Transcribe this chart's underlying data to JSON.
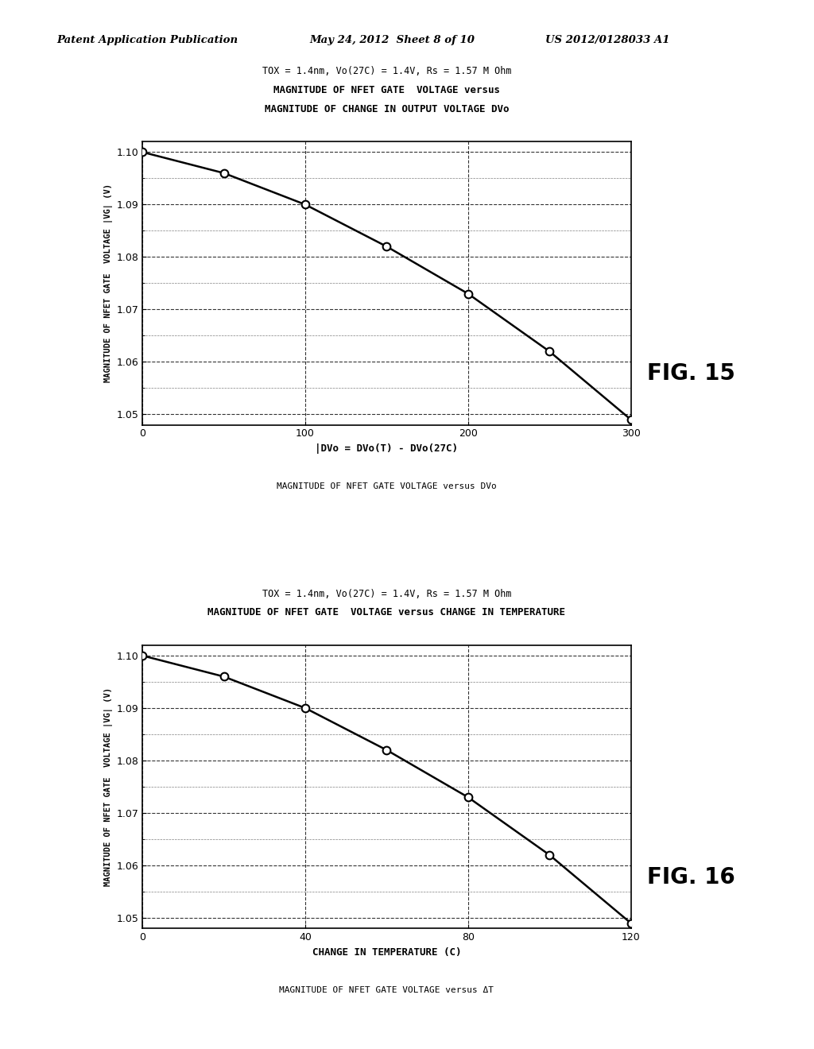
{
  "header_left": "Patent Application Publication",
  "header_mid": "May 24, 2012  Sheet 8 of 10",
  "header_right": "US 2012/0128033 A1",
  "fig15": {
    "title_line1": "TOX = 1.4nm, Vo(27C) = 1.4V, Rs = 1.57 M Ohm",
    "title_line2": "MAGNITUDE OF NFET GATE  VOLTAGE versus",
    "title_line3": "MAGNITUDE OF CHANGE IN OUTPUT VOLTAGE DVo",
    "xlabel": "|DVo = DVo(T) - DVo(27C)",
    "ylabel": "MAGNITUDE OF NFET GATE  VOLTAGE |VG| (V)",
    "caption": "MAGNITUDE OF NFET GATE VOLTAGE versus DVo",
    "fig_label": "FIG. 15",
    "xlim": [
      0,
      300
    ],
    "ylim": [
      1.048,
      1.102
    ],
    "xticks": [
      0,
      100,
      200,
      300
    ],
    "yticks": [
      1.05,
      1.06,
      1.07,
      1.08,
      1.09,
      1.1
    ],
    "x_data": [
      0,
      50,
      100,
      150,
      200,
      250,
      300
    ],
    "y_data": [
      1.1,
      1.096,
      1.09,
      1.082,
      1.073,
      1.062,
      1.049
    ]
  },
  "fig16": {
    "title_line1": "TOX = 1.4nm, Vo(27C) = 1.4V, Rs = 1.57 M Ohm",
    "title_line2": "MAGNITUDE OF NFET GATE  VOLTAGE versus CHANGE IN TEMPERATURE",
    "xlabel": "CHANGE IN TEMPERATURE (C)",
    "ylabel": "MAGNITUDE OF NFET GATE  VOLTAGE |VG| (V)",
    "caption": "MAGNITUDE OF NFET GATE VOLTAGE versus ΔT",
    "fig_label": "FIG. 16",
    "xlim": [
      0,
      120
    ],
    "ylim": [
      1.048,
      1.102
    ],
    "xticks": [
      0,
      40,
      80,
      120
    ],
    "yticks": [
      1.05,
      1.06,
      1.07,
      1.08,
      1.09,
      1.1
    ],
    "x_data": [
      0,
      20,
      40,
      60,
      80,
      100,
      120
    ],
    "y_data": [
      1.1,
      1.096,
      1.09,
      1.082,
      1.073,
      1.062,
      1.049
    ]
  }
}
